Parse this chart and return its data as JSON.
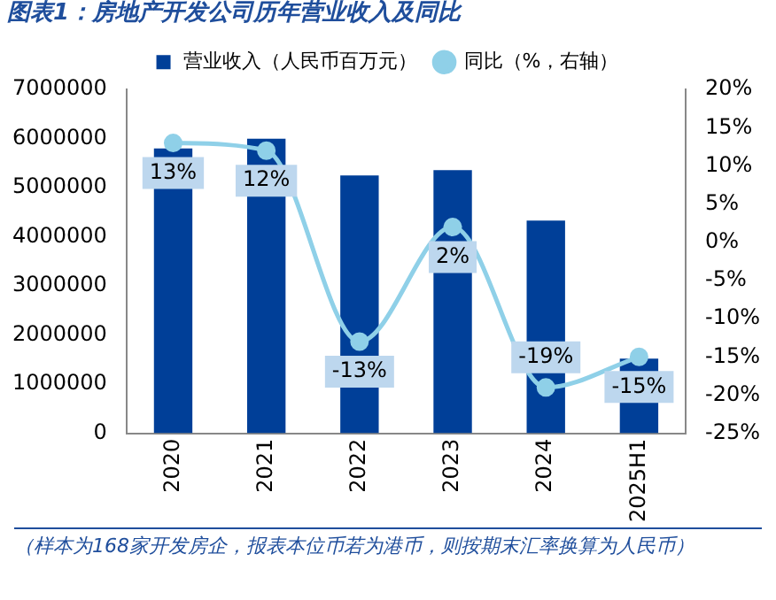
{
  "chart_data": {
    "type": "bar",
    "title": "图表1：房地产开发公司历年营业收入及同比",
    "categories": [
      "2020",
      "2021",
      "2022",
      "2023",
      "2024",
      "2025H1"
    ],
    "series": [
      {
        "name": "营业收入（人民币百万元）",
        "color": "#003f98",
        "values": [
          5800000,
          6000000,
          5250000,
          5360000,
          4330000,
          1520000
        ]
      },
      {
        "name": "同比（%，右轴）",
        "type": "line",
        "axis": "y2",
        "color": "#8fd0e8",
        "values": [
          13,
          12,
          -13,
          2,
          -19,
          -15
        ],
        "value_labels": [
          "13%",
          "12%",
          "-13%",
          "2%",
          "-19%",
          "-15%"
        ]
      }
    ],
    "ylim": [
      0,
      7000000
    ],
    "yticks": [
      0,
      1000000,
      2000000,
      3000000,
      4000000,
      5000000,
      6000000,
      7000000
    ],
    "y2lim": [
      -25,
      20
    ],
    "y2ticks": [
      {
        "value": -25,
        "label": "-25%"
      },
      {
        "value": -20,
        "label": "-20%"
      },
      {
        "value": -15,
        "label": "-15%"
      },
      {
        "value": -10,
        "label": "-10%"
      },
      {
        "value": -5,
        "label": "-5%"
      },
      {
        "value": 0,
        "label": "0%"
      },
      {
        "value": 5,
        "label": "5%"
      },
      {
        "value": 10,
        "label": "10%"
      },
      {
        "value": 15,
        "label": "15%"
      },
      {
        "value": 20,
        "label": "20%"
      }
    ],
    "legend": "top",
    "grid": false,
    "marker": "circle",
    "annotations": [
      "（样本为168家开发房企，报表本位币若为港币，则按期末汇率换算为人民币）"
    ]
  }
}
